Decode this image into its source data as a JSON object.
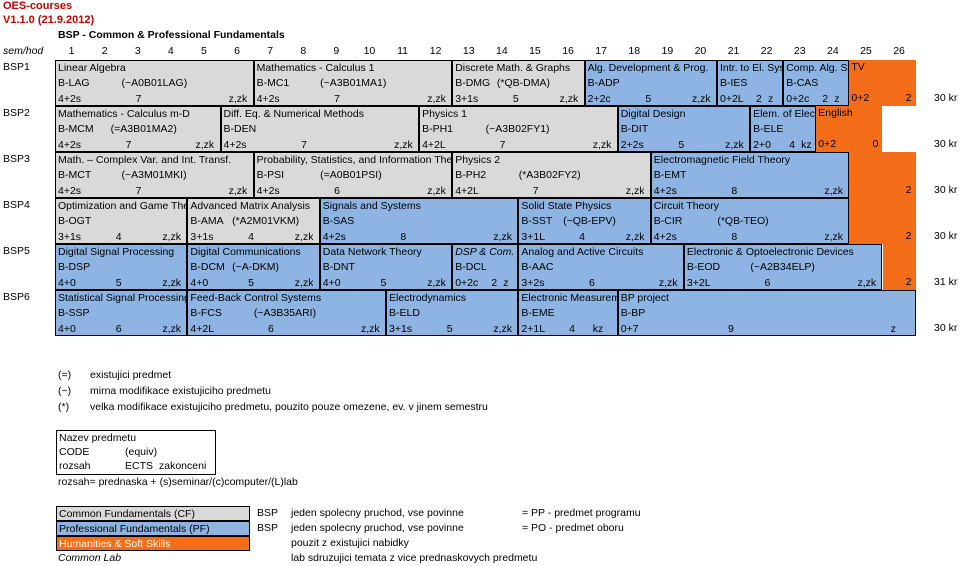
{
  "title": "OES-courses",
  "version": "V1.1.0 (21.9.2012)",
  "program": "BSP - Common & Professional Fundamentals",
  "header_label": "sem/hod",
  "columns": [
    "1",
    "2",
    "3",
    "4",
    "5",
    "6",
    "7",
    "8",
    "9",
    "10",
    "11",
    "12",
    "13",
    "14",
    "15",
    "16",
    "17",
    "18",
    "19",
    "20",
    "21",
    "22",
    "23",
    "24",
    "25",
    "26"
  ],
  "rows": [
    {
      "sem": "BSP1",
      "total": "30 kr"
    },
    {
      "sem": "BSP2",
      "total": "30 kr"
    },
    {
      "sem": "BSP3",
      "total": "30 kr"
    },
    {
      "sem": "BSP4",
      "total": "30 kr"
    },
    {
      "sem": "BSP5",
      "total": "31 kr"
    },
    {
      "sem": "BSP6",
      "total": "30 kr"
    }
  ],
  "courses": [
    {
      "row": 0,
      "start": 1,
      "span": 6,
      "kind": "cf",
      "name": "Linear Algebra",
      "code": "B-LAG",
      "equiv": "(~A0B01LAG)",
      "hours": "4+2s",
      "ects": "7",
      "finish": "z,zk"
    },
    {
      "row": 0,
      "start": 7,
      "span": 6,
      "kind": "cf",
      "name": "Mathematics - Calculus 1",
      "code": "B-MC1",
      "equiv": "(~A3B01MA1)",
      "hours": "4+2s",
      "ects": "7",
      "finish": "z,zk"
    },
    {
      "row": 0,
      "start": 13,
      "span": 4,
      "kind": "cf",
      "name": "Discrete Math. & Graphs",
      "code": "B-DMG",
      "equiv": "(*QB-DMA)",
      "hours": "3+1s",
      "ects": "5",
      "finish": "z,zk"
    },
    {
      "row": 0,
      "start": 17,
      "span": 4,
      "kind": "pf",
      "name": "Alg. Development & Prog.",
      "code": "B-ADP",
      "equiv": "",
      "hours": "2+2c",
      "ects": "5",
      "finish": "z,zk"
    },
    {
      "row": 0,
      "start": 21,
      "span": 2,
      "kind": "pf",
      "name": "Intr. to El. Systems",
      "code": "B-IES",
      "equiv": "",
      "hours": "0+2L",
      "ects": "2",
      "finish": "z"
    },
    {
      "row": 0,
      "start": 23,
      "span": 2,
      "kind": "pf",
      "name": "Comp. Alg. Systems",
      "code": "B-CAS",
      "equiv": "",
      "hours": "0+2c",
      "ects": "2",
      "finish": "z"
    },
    {
      "row": 0,
      "start": 25,
      "span": 2,
      "kind": "hs",
      "name": "TV",
      "code": "",
      "equiv": "",
      "hours": "0+2",
      "ects": "2",
      "finish": ""
    },
    {
      "row": 1,
      "start": 1,
      "span": 5,
      "kind": "cf",
      "name": "Mathematics - Calculus m-D",
      "code": "B-MCM",
      "equiv": "(=A3B01MA2)",
      "hours": "4+2s",
      "ects": "7",
      "finish": "z,zk"
    },
    {
      "row": 1,
      "start": 6,
      "span": 6,
      "kind": "cf",
      "name": "Diff. Eq. & Numerical Methods",
      "code": "B-DEN",
      "equiv": "",
      "hours": "4+2s",
      "ects": "7",
      "finish": "z,zk"
    },
    {
      "row": 1,
      "start": 12,
      "span": 6,
      "kind": "cf",
      "name": "Physics 1",
      "code": "B-PH1",
      "equiv": "(~A3B02FY1)",
      "hours": "4+2L",
      "ects": "7",
      "finish": "z,zk"
    },
    {
      "row": 1,
      "start": 18,
      "span": 4,
      "kind": "pf",
      "name": "Digital Design",
      "code": "B-DIT",
      "equiv": "",
      "hours": "2+2s",
      "ects": "5",
      "finish": "z,zk"
    },
    {
      "row": 1,
      "start": 22,
      "span": 2,
      "kind": "pf",
      "name": "Elem. of Electronics",
      "code": "B-ELE",
      "equiv": "",
      "hours": "2+0",
      "ects": "4",
      "finish": "kz"
    },
    {
      "row": 1,
      "start": 24,
      "span": 2,
      "kind": "hs",
      "name": "English",
      "code": "",
      "equiv": "",
      "hours": "0+2",
      "ects": "0",
      "finish": ""
    },
    {
      "row": 2,
      "start": 1,
      "span": 6,
      "kind": "cf",
      "name": "Math. – Complex Var. and Int. Transf.",
      "code": "B-MCT",
      "equiv": "(~A3M01MKI)",
      "hours": "4+2s",
      "ects": "7",
      "finish": "z,zk"
    },
    {
      "row": 2,
      "start": 7,
      "span": 6,
      "kind": "cf",
      "name": "Probability, Statistics, and Information Theory",
      "code": "B-PSI",
      "equiv": "(=A0B01PSI)",
      "hours": "4+2s",
      "ects": "6",
      "finish": "z,zk"
    },
    {
      "row": 2,
      "start": 13,
      "span": 6,
      "kind": "cf",
      "name": "Physics 2",
      "code": "B-PH2",
      "equiv": "(*A3B02FY2)",
      "hours": "4+2L",
      "ects": "7",
      "finish": "z,zk"
    },
    {
      "row": 2,
      "start": 19,
      "span": 6,
      "kind": "pf",
      "name": "Electromagnetic Field Theory",
      "code": "B-EMT",
      "equiv": "",
      "hours": "4+2s",
      "ects": "8",
      "finish": "z,zk"
    },
    {
      "row": 2,
      "start": 25,
      "span": 2,
      "kind": "hs",
      "name": "",
      "code": "",
      "equiv": "",
      "hours": "",
      "ects": "2",
      "finish": ""
    },
    {
      "row": 3,
      "start": 1,
      "span": 4,
      "kind": "cf",
      "name": "Optimization and Game Theory",
      "code": "B-OGT",
      "equiv": "",
      "hours": "3+1s",
      "ects": "4",
      "finish": "z,zk"
    },
    {
      "row": 3,
      "start": 5,
      "span": 4,
      "kind": "cf",
      "name": "Advanced Matrix Analysis",
      "code": "B-AMA",
      "equiv": "(*A2M01VKM)",
      "hours": "3+1s",
      "ects": "4",
      "finish": "z,zk"
    },
    {
      "row": 3,
      "start": 9,
      "span": 6,
      "kind": "pf",
      "name": "Signals and Systems",
      "code": "B-SAS",
      "equiv": "",
      "hours": "4+2s",
      "ects": "8",
      "finish": "z,zk"
    },
    {
      "row": 3,
      "start": 15,
      "span": 4,
      "kind": "pf",
      "name": "Solid State Physics",
      "code": "B-SST",
      "equiv": "(~QB-EPV)",
      "hours": "3+1L",
      "ects": "4",
      "finish": "z,zk"
    },
    {
      "row": 3,
      "start": 19,
      "span": 6,
      "kind": "pf",
      "name": "Circuit Theory",
      "code": "B-CIR",
      "equiv": "(*QB-TEO)",
      "hours": "4+2s",
      "ects": "8",
      "finish": "z,zk"
    },
    {
      "row": 3,
      "start": 25,
      "span": 2,
      "kind": "hs",
      "name": "",
      "code": "",
      "equiv": "",
      "hours": "",
      "ects": "2",
      "finish": ""
    },
    {
      "row": 4,
      "start": 1,
      "span": 4,
      "kind": "pf",
      "name": "Digital Signal Processing",
      "code": "B-DSP",
      "equiv": "",
      "hours": "4+0",
      "ects": "5",
      "finish": "z,zk"
    },
    {
      "row": 4,
      "start": 5,
      "span": 4,
      "kind": "pf",
      "name": "Digital Communications",
      "code": "B-DCM",
      "equiv": "(~A-DKM)",
      "hours": "4+0",
      "ects": "5",
      "finish": "z,zk"
    },
    {
      "row": 4,
      "start": 9,
      "span": 4,
      "kind": "pf",
      "name": "Data Network Theory",
      "code": "B-DNT",
      "equiv": "",
      "hours": "4+0",
      "ects": "5",
      "finish": "z,zk"
    },
    {
      "row": 4,
      "start": 13,
      "span": 2,
      "kind": "pf",
      "italic": true,
      "name": "DSP & Com. Lab",
      "code": "B-DCL",
      "equiv": "",
      "hours": "0+2c",
      "ects": "2",
      "finish": "z"
    },
    {
      "row": 4,
      "start": 15,
      "span": 5,
      "kind": "pf",
      "name": "Analog and Active Circuits",
      "code": "B-AAC",
      "equiv": "",
      "hours": "3+2s",
      "ects": "6",
      "finish": "z,zk"
    },
    {
      "row": 4,
      "start": 20,
      "span": 6,
      "kind": "pf",
      "name": "Electronic & Optoelectronic Devices",
      "code": "B-EOD",
      "equiv": "(~A2B34ELP)",
      "hours": "3+2L",
      "ects": "6",
      "finish": "z,zk"
    },
    {
      "row": 4,
      "start": 26,
      "span": 1,
      "kind": "hs",
      "name": "",
      "code": "",
      "equiv": "",
      "hours": "",
      "ects": "2",
      "finish": ""
    },
    {
      "row": 5,
      "start": 1,
      "span": 4,
      "kind": "pf",
      "name": "Statistical Signal Processing",
      "code": "B-SSP",
      "equiv": "",
      "hours": "4+0",
      "ects": "6",
      "finish": "z,zk"
    },
    {
      "row": 5,
      "start": 5,
      "span": 6,
      "kind": "pf",
      "name": "Feed-Back Control Systems",
      "code": "B-FCS",
      "equiv": "(~A3B35ARI)",
      "hours": "4+2L",
      "ects": "6",
      "finish": "z,zk"
    },
    {
      "row": 5,
      "start": 11,
      "span": 4,
      "kind": "pf",
      "name": "Electrodynamics",
      "code": "B-ELD",
      "equiv": "",
      "hours": "3+1s",
      "ects": "5",
      "finish": "z,zk"
    },
    {
      "row": 5,
      "start": 15,
      "span": 3,
      "kind": "pf",
      "name": "Electronic Measurements",
      "code": "B-EME",
      "equiv": "",
      "hours": "2+1L",
      "ects": "4",
      "finish": "kz"
    },
    {
      "row": 5,
      "start": 18,
      "span": 9,
      "kind": "pf",
      "name": "BP project",
      "code": "B-BP",
      "equiv": "",
      "hours": "0+7",
      "ects": "9",
      "finish": "z"
    }
  ],
  "symbols": [
    {
      "sym": "(=)",
      "text": "existujici predmet"
    },
    {
      "sym": "(~)",
      "text": "mirna modifikace existujiciho predmetu"
    },
    {
      "sym": "(*)",
      "text": "velka modifikace existujiciho predmetu, pouzito pouze omezene, ev. v jinem semestru"
    }
  ],
  "key_box": {
    "line1": "Nazev predmetu",
    "line2a": "CODE",
    "line2b": "(equiv)",
    "line3a": "rozsah",
    "line3b": "ECTS",
    "line3c": "zakonceni"
  },
  "key_note": "rozsah= prednaska + (s)seminar/(c)computer/(L)lab",
  "legend": [
    {
      "label": "Common Fundamentals (CF)",
      "kind": "cf",
      "tag": "BSP",
      "desc": "jeden spolecny pruchod, vse povinne",
      "note": "= PP - predmet programu"
    },
    {
      "label": "Professional Fundamentals (PF)",
      "kind": "pf",
      "tag": "BSP",
      "desc": "jeden spolecny pruchod, vse povinne",
      "note": "= PO - predmet oboru"
    },
    {
      "label": "Humanities & Soft Skills",
      "kind": "hs",
      "tag": "",
      "desc": "pouzit z existujici nabidky",
      "note": ""
    },
    {
      "label": "Common Lab",
      "kind": "none",
      "tag": "",
      "desc": "lab sdruzujici temata z vice prednaskovych predmetu",
      "note": ""
    }
  ],
  "colors": {
    "cf": "#d9d9d9",
    "pf": "#8db4e2",
    "hs": "#f46e1a",
    "title": "#c00000"
  }
}
